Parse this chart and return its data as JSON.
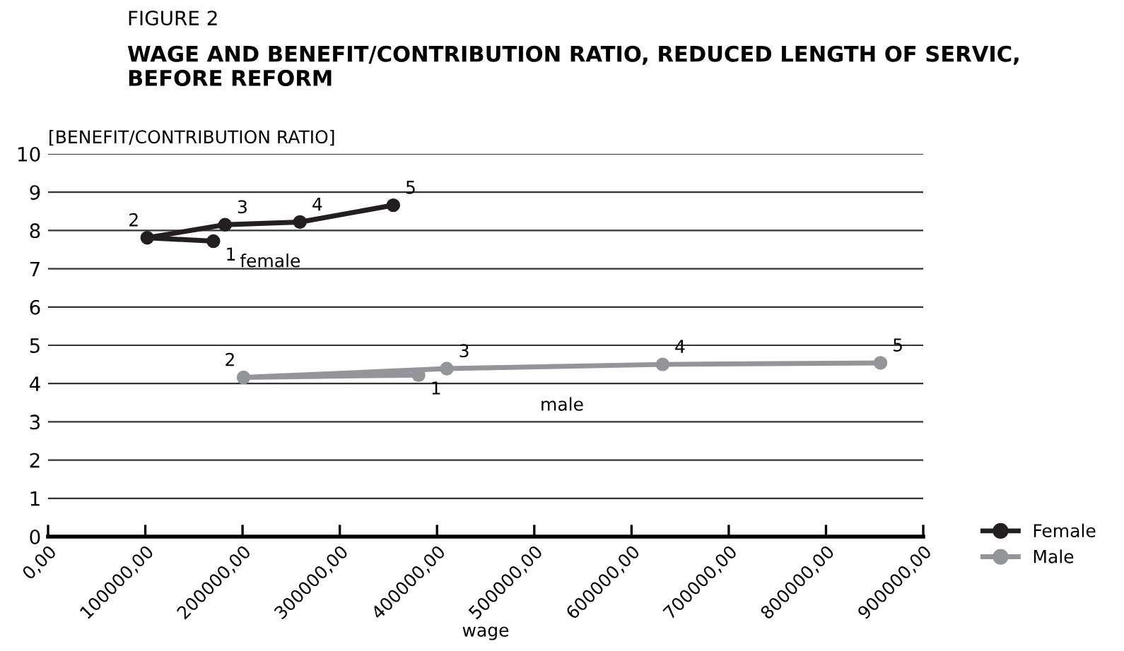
{
  "chart_data": {
    "type": "line",
    "title": "WAGE AND BENEFIT/CONTRIBUTION RATIO, REDUCED LENGTH OF SERVIC, BEFORE REFORM",
    "xlabel": "wage",
    "ylabel": "[BENEFIT/CONTRIBUTION RATIO]",
    "series": [
      {
        "name": "Female",
        "color": "#231f20",
        "x": [
          170000,
          102000,
          182000,
          259000,
          355000
        ],
        "values": [
          7.72,
          7.81,
          8.15,
          8.22,
          8.66
        ]
      },
      {
        "name": "Male",
        "color": "#939598",
        "x": [
          381000,
          201000,
          410000,
          632000,
          856000
        ],
        "values": [
          4.22,
          4.16,
          4.39,
          4.5,
          4.54
        ]
      }
    ],
    "xlim": [
      0,
      900000
    ],
    "xticks": [
      {
        "value": 0,
        "label": "0,00"
      },
      {
        "value": 100000,
        "label": "100000,00"
      },
      {
        "value": 200000,
        "label": "200000,00"
      },
      {
        "value": 300000,
        "label": "300000,00"
      },
      {
        "value": 400000,
        "label": "400000,00"
      },
      {
        "value": 500000,
        "label": "500000,00"
      },
      {
        "value": 600000,
        "label": "600000,00"
      },
      {
        "value": 700000,
        "label": "700000,00"
      },
      {
        "value": 800000,
        "label": "800000,00"
      },
      {
        "value": 900000,
        "label": "900000,00"
      }
    ],
    "ylim": [
      0,
      10
    ],
    "yticks": [
      0,
      1,
      2,
      3,
      4,
      5,
      6,
      7,
      8,
      9,
      10
    ],
    "grid": "y",
    "legend": "bottom right",
    "marker": "circle",
    "line_style": "solid",
    "annotations": [
      "FIGURE 2",
      {
        "text": "1",
        "x": 170000,
        "y": 7.72
      },
      {
        "text": "2",
        "x": 102000,
        "y": 7.81
      },
      {
        "text": "3",
        "x": 182000,
        "y": 8.15
      },
      {
        "text": "4",
        "x": 259000,
        "y": 8.22
      },
      {
        "text": "5",
        "x": 355000,
        "y": 8.66
      },
      "female",
      {
        "text": "1",
        "x": 381000,
        "y": 4.22
      },
      {
        "text": "2",
        "x": 201000,
        "y": 4.16
      },
      {
        "text": "3",
        "x": 410000,
        "y": 4.39
      },
      {
        "text": "4",
        "x": 632000,
        "y": 4.5
      },
      {
        "text": "5",
        "x": 856000,
        "y": 4.54
      },
      "male"
    ]
  }
}
